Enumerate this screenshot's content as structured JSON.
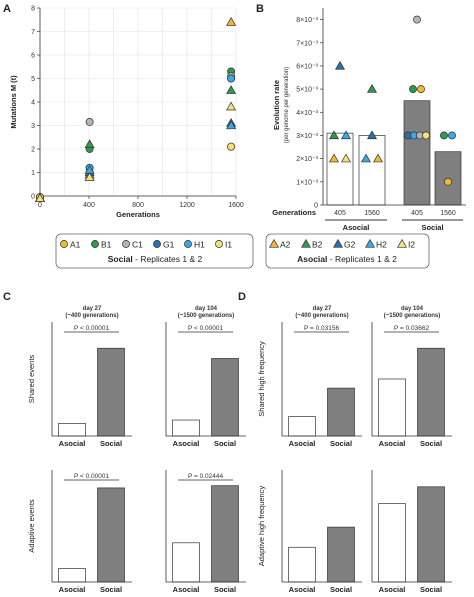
{
  "colors": {
    "A": "#f2b830",
    "B": "#2e9a4e",
    "C": "#b4b4b4",
    "G": "#2d6fa6",
    "H": "#3aa8e3",
    "I": "#f4e17a",
    "bar_social": "#7f7f7f",
    "bar_asocial": "#ffffff",
    "grid": "#e3e3e3",
    "axis": "#333333"
  },
  "panel_letters": [
    "A",
    "B",
    "C",
    "D"
  ],
  "legend": {
    "social_items": [
      {
        "key": "A",
        "label": "A1",
        "color": "#f2b830"
      },
      {
        "key": "B",
        "label": "B1",
        "color": "#2e9a4e"
      },
      {
        "key": "C",
        "label": "C1",
        "color": "#b4b4b4"
      },
      {
        "key": "G",
        "label": "G1",
        "color": "#2d6fa6"
      },
      {
        "key": "H",
        "label": "H1",
        "color": "#3aa8e3"
      },
      {
        "key": "I",
        "label": "I1",
        "color": "#f4e17a"
      }
    ],
    "social_title": "Social",
    "social_sub": " - Replicates 1 & 2",
    "asocial_items": [
      {
        "key": "A",
        "label": "A2",
        "color": "#f2b830"
      },
      {
        "key": "B",
        "label": "B2",
        "color": "#2e9a4e"
      },
      {
        "key": "G",
        "label": "G2",
        "color": "#2d6fa6"
      },
      {
        "key": "H",
        "label": "H2",
        "color": "#3aa8e3"
      },
      {
        "key": "I",
        "label": "I2",
        "color": "#f4e17a"
      }
    ],
    "asocial_title": "Asocial",
    "asocial_sub": " - Replicates 1 & 2"
  },
  "chart_data": [
    {
      "panel": "A",
      "type": "scatter",
      "xlabel": "Generations",
      "ylabel": "Mutations M (t)",
      "xlim": [
        0,
        1600
      ],
      "ylim": [
        0,
        8
      ],
      "xticks": [
        0,
        200,
        400,
        600,
        800,
        1000,
        1200,
        1400,
        1600
      ],
      "yticks": [
        0,
        1,
        2,
        3,
        4,
        5,
        6,
        7,
        8
      ],
      "grid": true,
      "series": [
        {
          "name": "A1",
          "color": "#f2b830",
          "marker": "circle",
          "x": [
            0,
            405,
            1560
          ],
          "y": [
            -0.05,
            1.0,
            2.1
          ]
        },
        {
          "name": "B1",
          "color": "#2e9a4e",
          "marker": "circle",
          "x": [
            0,
            405,
            1560
          ],
          "y": [
            -0.05,
            2.0,
            5.3
          ]
        },
        {
          "name": "C1",
          "color": "#b4b4b4",
          "marker": "circle",
          "x": [
            0,
            405,
            1560
          ],
          "y": [
            -0.05,
            3.15,
            5.1
          ]
        },
        {
          "name": "G1",
          "color": "#2d6fa6",
          "marker": "circle",
          "x": [
            0,
            405,
            1560
          ],
          "y": [
            -0.05,
            1.2,
            5.0
          ]
        },
        {
          "name": "H1",
          "color": "#3aa8e3",
          "marker": "circle",
          "x": [
            0,
            405,
            1560
          ],
          "y": [
            -0.05,
            1.2,
            5.0
          ]
        },
        {
          "name": "I1",
          "color": "#f4e17a",
          "marker": "circle",
          "x": [
            0,
            405,
            1560
          ],
          "y": [
            -0.05,
            1.0,
            2.1
          ]
        },
        {
          "name": "A2",
          "color": "#f2b830",
          "marker": "triangle",
          "x": [
            0,
            405,
            1560
          ],
          "y": [
            -0.1,
            0.9,
            7.4
          ]
        },
        {
          "name": "B2",
          "color": "#2e9a4e",
          "marker": "triangle",
          "x": [
            0,
            405,
            1560
          ],
          "y": [
            -0.1,
            2.2,
            4.5
          ]
        },
        {
          "name": "G2",
          "color": "#2d6fa6",
          "marker": "triangle",
          "x": [
            0,
            405,
            1560
          ],
          "y": [
            -0.1,
            1.0,
            3.1
          ]
        },
        {
          "name": "H2",
          "color": "#3aa8e3",
          "marker": "triangle",
          "x": [
            0,
            405,
            1560
          ],
          "y": [
            -0.1,
            1.1,
            3.0
          ]
        },
        {
          "name": "I2",
          "color": "#f4e17a",
          "marker": "triangle",
          "x": [
            0,
            405,
            1560
          ],
          "y": [
            -0.1,
            0.8,
            3.8
          ]
        }
      ]
    },
    {
      "panel": "B",
      "type": "bar",
      "ylabel": "Evolution rate",
      "ylabel2": "(per genome per generation)",
      "ylim": [
        0,
        0.0085
      ],
      "yticks": [
        0,
        0.001,
        0.002,
        0.003,
        0.004,
        0.005,
        0.006,
        0.007,
        0.008
      ],
      "ytick_labels": [
        "0",
        "1×10⁻³",
        "2×10⁻³",
        "3×10⁻³",
        "4×10⁻³",
        "5×10⁻³",
        "6×10⁻³",
        "7×10⁻³",
        "8×10⁻³"
      ],
      "row_label": "Generations",
      "categories": [
        "405",
        "1560",
        "405",
        "1560"
      ],
      "groups": [
        {
          "label": "Asocial",
          "span": [
            0,
            1
          ]
        },
        {
          "label": "Social",
          "span": [
            2,
            3
          ]
        }
      ],
      "values": [
        0.0031,
        0.003,
        0.0045,
        0.0023
      ],
      "bar_colors": [
        "#ffffff",
        "#ffffff",
        "#7f7f7f",
        "#7f7f7f"
      ],
      "points": [
        {
          "cat": 0,
          "y": 0.006,
          "key": "G",
          "marker": "triangle",
          "dx": 0
        },
        {
          "cat": 0,
          "y": 0.003,
          "key": "B",
          "marker": "triangle",
          "dx": -6
        },
        {
          "cat": 0,
          "y": 0.003,
          "key": "H",
          "marker": "triangle",
          "dx": 6
        },
        {
          "cat": 0,
          "y": 0.002,
          "key": "A",
          "marker": "triangle",
          "dx": -6
        },
        {
          "cat": 0,
          "y": 0.002,
          "key": "I",
          "marker": "triangle",
          "dx": 6
        },
        {
          "cat": 1,
          "y": 0.005,
          "key": "B",
          "marker": "triangle",
          "dx": 0
        },
        {
          "cat": 1,
          "y": 0.003,
          "key": "G",
          "marker": "triangle",
          "dx": 0
        },
        {
          "cat": 1,
          "y": 0.002,
          "key": "H",
          "marker": "triangle",
          "dx": -6
        },
        {
          "cat": 1,
          "y": 0.002,
          "key": "A",
          "marker": "triangle",
          "dx": 6
        },
        {
          "cat": 2,
          "y": 0.008,
          "key": "C",
          "marker": "circle",
          "dx": 0
        },
        {
          "cat": 2,
          "y": 0.005,
          "key": "B",
          "marker": "circle",
          "dx": -4
        },
        {
          "cat": 2,
          "y": 0.005,
          "key": "A",
          "marker": "circle",
          "dx": 4
        },
        {
          "cat": 2,
          "y": 0.003,
          "key": "G",
          "marker": "circle",
          "dx": -9
        },
        {
          "cat": 2,
          "y": 0.003,
          "key": "H",
          "marker": "circle",
          "dx": -3
        },
        {
          "cat": 2,
          "y": 0.003,
          "key": "C",
          "marker": "circle",
          "dx": 3
        },
        {
          "cat": 2,
          "y": 0.003,
          "key": "I",
          "marker": "circle",
          "dx": 9
        },
        {
          "cat": 3,
          "y": 0.003,
          "key": "B",
          "marker": "circle",
          "dx": -4
        },
        {
          "cat": 3,
          "y": 0.003,
          "key": "H",
          "marker": "circle",
          "dx": 4
        },
        {
          "cat": 3,
          "y": 0.001,
          "key": "A",
          "marker": "circle",
          "dx": 0
        }
      ]
    },
    {
      "panel": "C",
      "type": "bar",
      "title": [
        "day 27",
        "(~400 generations)"
      ],
      "ylabel": "Shared events",
      "categories": [
        "Asocial",
        "Social"
      ],
      "values": [
        0.11,
        0.77
      ],
      "ylim": [
        0,
        1
      ],
      "pvalue": "P < 0.00001"
    },
    {
      "panel": "C",
      "type": "bar",
      "title": [
        "day 104",
        "(~1500 generations)"
      ],
      "ylabel": "",
      "categories": [
        "Asocial",
        "Social"
      ],
      "values": [
        0.14,
        0.68
      ],
      "ylim": [
        0,
        1
      ],
      "pvalue": "P < 0.00001"
    },
    {
      "panel": "C",
      "type": "bar",
      "title": [],
      "ylabel": "Adaptive events",
      "categories": [
        "Asocial",
        "Social"
      ],
      "values": [
        0.12,
        0.84
      ],
      "ylim": [
        0,
        1
      ],
      "pvalue": "P < 0.00001"
    },
    {
      "panel": "C",
      "type": "bar",
      "title": [],
      "ylabel": "",
      "categories": [
        "Asocial",
        "Social"
      ],
      "values": [
        0.35,
        0.86
      ],
      "ylim": [
        0,
        1
      ],
      "pvalue": "P = 0.02444"
    },
    {
      "panel": "D",
      "type": "bar",
      "title": [
        "day 27",
        "(~400 generations)"
      ],
      "ylabel": "Shared high frequency",
      "categories": [
        "Asocial",
        "Social"
      ],
      "values": [
        0.17,
        0.42
      ],
      "ylim": [
        0,
        1
      ],
      "pvalue": "P = 0.03156"
    },
    {
      "panel": "D",
      "type": "bar",
      "title": [
        "day 104",
        "(~1500 generations)"
      ],
      "ylabel": "",
      "categories": [
        "Asocial",
        "Social"
      ],
      "values": [
        0.5,
        0.77
      ],
      "ylim": [
        0,
        1
      ],
      "pvalue": "P = 0.03662"
    },
    {
      "panel": "D",
      "type": "bar",
      "title": [],
      "ylabel": "Adaptive high frequency",
      "categories": [
        "Asocial",
        "Social"
      ],
      "values": [
        0.31,
        0.49
      ],
      "ylim": [
        0,
        1
      ],
      "pvalue": ""
    },
    {
      "panel": "D",
      "type": "bar",
      "title": [],
      "ylabel": "",
      "categories": [
        "Asocial",
        "Social"
      ],
      "values": [
        0.7,
        0.85
      ],
      "ylim": [
        0,
        1
      ],
      "pvalue": ""
    }
  ]
}
